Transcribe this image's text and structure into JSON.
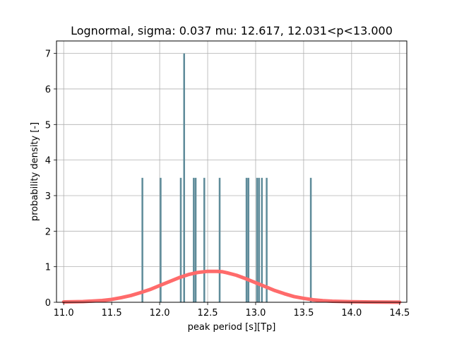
{
  "chart_data": {
    "type": "bar",
    "title": "Lognormal, sigma: 0.037 mu: 12.617, 12.031<p<13.000",
    "xlabel": "peak period [s][Tp]",
    "ylabel": "probability density [-]",
    "xlim": [
      10.925,
      14.575
    ],
    "ylim": [
      0,
      7.35
    ],
    "xticks": [
      "11.0",
      "11.5",
      "12.0",
      "12.5",
      "13.0",
      "13.5",
      "14.0",
      "14.5"
    ],
    "yticks": [
      "0",
      "1",
      "2",
      "3",
      "4",
      "5",
      "6",
      "7"
    ],
    "grid": true,
    "legend": "none",
    "bar_width": 0.0185,
    "series": [
      {
        "type": "bar",
        "color": "#5f8c9a",
        "x": [
          11.82,
          12.01,
          12.22,
          12.255,
          12.355,
          12.375,
          12.465,
          12.625,
          12.905,
          12.925,
          13.015,
          13.035,
          13.065,
          13.115,
          13.575
        ],
        "values": [
          3.5,
          3.5,
          3.5,
          7.0,
          3.5,
          3.5,
          3.5,
          3.5,
          3.5,
          3.5,
          3.5,
          3.5,
          3.5,
          3.5,
          3.5
        ]
      },
      {
        "type": "line",
        "color": "#ff6b6b",
        "x": [
          11.0,
          11.2,
          11.4,
          11.5,
          11.6,
          11.7,
          11.8,
          11.9,
          12.0,
          12.1,
          12.2,
          12.3,
          12.4,
          12.5,
          12.6,
          12.65,
          12.7,
          12.8,
          12.9,
          13.0,
          13.1,
          13.2,
          13.3,
          13.4,
          13.5,
          13.6,
          13.7,
          13.8,
          14.0,
          14.2,
          14.5
        ],
        "values": [
          0.01,
          0.02,
          0.05,
          0.08,
          0.13,
          0.19,
          0.27,
          0.36,
          0.47,
          0.58,
          0.69,
          0.78,
          0.84,
          0.87,
          0.87,
          0.86,
          0.83,
          0.76,
          0.66,
          0.55,
          0.44,
          0.33,
          0.24,
          0.16,
          0.11,
          0.07,
          0.045,
          0.03,
          0.015,
          0.008,
          0.003
        ]
      }
    ]
  }
}
